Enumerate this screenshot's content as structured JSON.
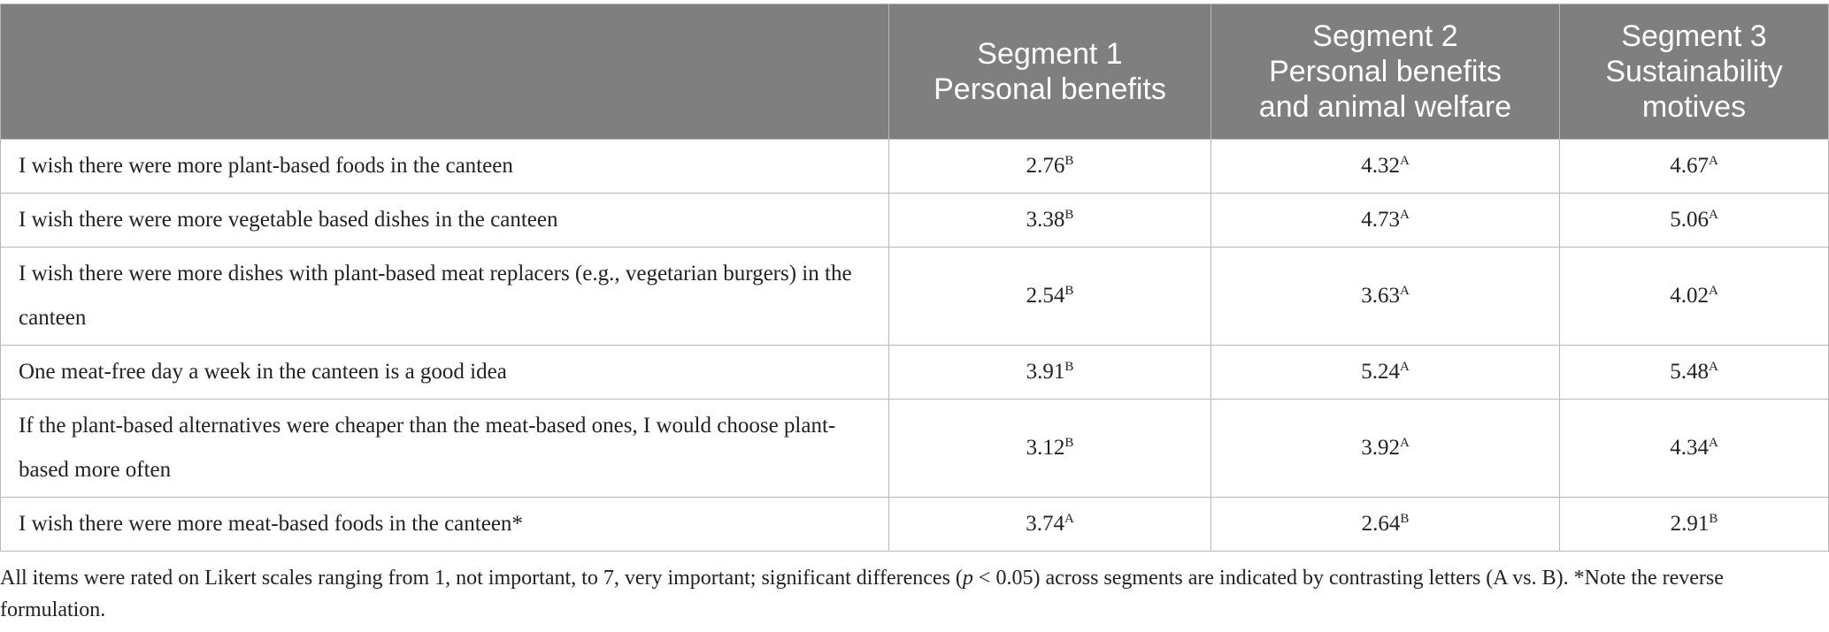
{
  "table": {
    "header": [
      [],
      [
        "Segment 1",
        "Personal benefits"
      ],
      [
        "Segment 2",
        "Personal benefits",
        "and animal welfare"
      ],
      [
        "Segment 3",
        "Sustainability",
        "motives"
      ]
    ],
    "rows": [
      {
        "label": "I wish there were more plant-based foods in the canteen",
        "cells": [
          {
            "value": 2.76,
            "sup": "B"
          },
          {
            "value": 4.32,
            "sup": "A"
          },
          {
            "value": 4.67,
            "sup": "A"
          }
        ]
      },
      {
        "label": "I wish there were more vegetable based dishes in the canteen",
        "cells": [
          {
            "value": 3.38,
            "sup": "B"
          },
          {
            "value": 4.73,
            "sup": "A"
          },
          {
            "value": 5.06,
            "sup": "A"
          }
        ]
      },
      {
        "label": "I wish there were more dishes with plant-based meat replacers (e.g., vegetarian burgers) in the canteen",
        "cells": [
          {
            "value": 2.54,
            "sup": "B"
          },
          {
            "value": 3.63,
            "sup": "A"
          },
          {
            "value": 4.02,
            "sup": "A"
          }
        ]
      },
      {
        "label": "One meat-free day a week in the canteen is a good idea",
        "cells": [
          {
            "value": 3.91,
            "sup": "B"
          },
          {
            "value": 5.24,
            "sup": "A"
          },
          {
            "value": 5.48,
            "sup": "A"
          }
        ]
      },
      {
        "label": "If the plant-based alternatives were cheaper than the meat-based ones, I would choose plant-based more often",
        "cells": [
          {
            "value": 3.12,
            "sup": "B"
          },
          {
            "value": 3.92,
            "sup": "A"
          },
          {
            "value": 4.34,
            "sup": "A"
          }
        ]
      },
      {
        "label": "I wish there were more meat-based foods in the canteen*",
        "cells": [
          {
            "value": 3.74,
            "sup": "A"
          },
          {
            "value": 2.64,
            "sup": "B"
          },
          {
            "value": 2.91,
            "sup": "B"
          }
        ]
      }
    ]
  },
  "footnote": [
    {
      "text": "All items were rated on Likert scales ranging from 1, not important, to 7, very important; significant differences ("
    },
    {
      "text": "p",
      "italic": true
    },
    {
      "text": " < 0.05) across segments are indicated by contrasting letters (A vs. B). *Note the reverse formulation."
    }
  ]
}
